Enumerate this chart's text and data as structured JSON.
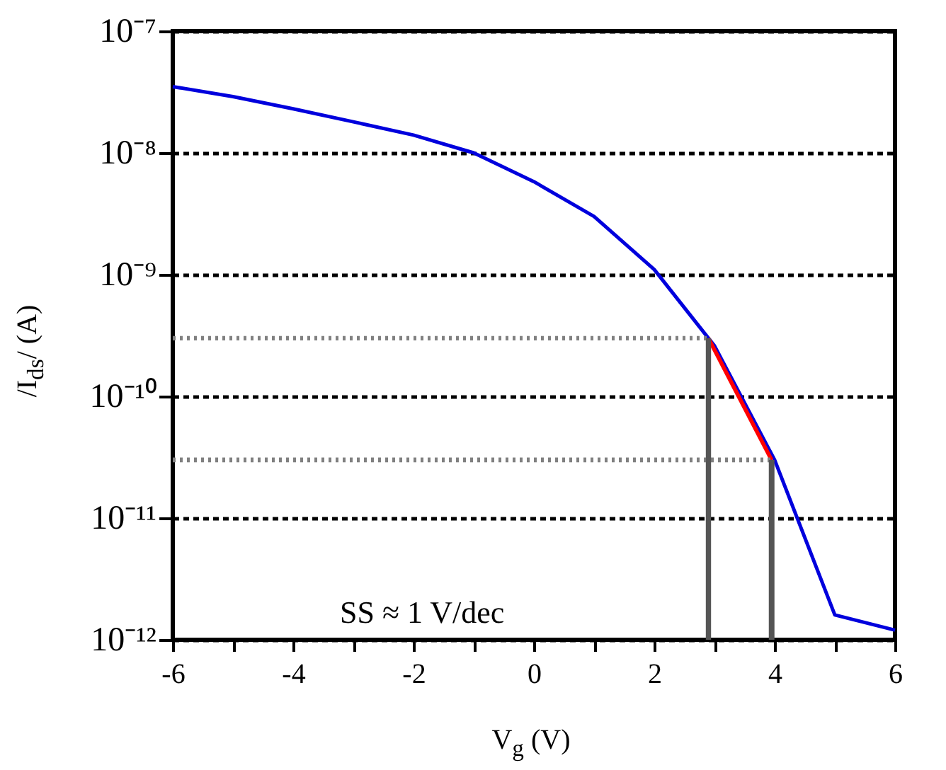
{
  "chart_data": {
    "type": "line",
    "xlabel": "V$_{g}$ (V)",
    "ylabel": "/I$_{ds}$/ (A)",
    "log": "y",
    "grid": "y",
    "legend": false,
    "marker": "none",
    "xlim": [
      -6,
      6
    ],
    "xticks": [
      -6,
      {
        "value": -5,
        "label": null
      },
      -4,
      {
        "value": -3,
        "label": null
      },
      -2,
      {
        "value": -1,
        "label": null
      },
      0,
      {
        "value": 1,
        "label": null
      },
      2,
      {
        "value": 3,
        "label": null
      },
      4,
      {
        "value": 5,
        "label": null
      },
      6
    ],
    "ylim": [
      1e-12,
      1e-07
    ],
    "yticks": [
      {
        "value": 1e-12,
        "label": "10⁻¹²"
      },
      {
        "value": 1e-11,
        "label": "10⁻¹¹"
      },
      {
        "value": 1e-10,
        "label": "10⁻¹⁰"
      },
      {
        "value": 1e-09,
        "label": "10⁻⁹"
      },
      {
        "value": 1e-08,
        "label": "10⁻⁸"
      },
      {
        "value": 1e-07,
        "label": "10⁻⁷"
      }
    ],
    "series": [
      {
        "color": "#0000dd",
        "x": [
          -6,
          -5,
          -4,
          -3,
          -2,
          -1,
          0,
          1,
          2,
          3,
          4,
          5,
          6
        ],
        "values": [
          3.5e-08,
          2.9e-08,
          2.3e-08,
          1.8e-08,
          1.4e-08,
          1e-08,
          5.8e-09,
          3e-09,
          1.1e-09,
          2.6e-10,
          3e-11,
          1.6e-12,
          1.2e-12
        ]
      },
      {
        "color": "#ff0000",
        "x": [
          2.9,
          3.95
        ],
        "values": [
          3e-10,
          3e-11
        ]
      },
      {
        "color": "#808080",
        "line_style": "dotted",
        "x": [
          -6,
          2.9
        ],
        "values": [
          3e-10,
          3e-10
        ]
      },
      {
        "color": "#808080",
        "line_style": "dotted",
        "x": [
          -6,
          3.95
        ],
        "values": [
          3e-11,
          3e-11
        ]
      },
      {
        "color": "#555555",
        "x": [
          2.9,
          2.9
        ],
        "values": [
          1e-12,
          3e-10
        ]
      },
      {
        "color": "#555555",
        "x": [
          3.95,
          3.95
        ],
        "values": [
          1e-12,
          3e-11
        ]
      }
    ],
    "annotations": [
      "SS ≈ 1 V/dec"
    ]
  }
}
